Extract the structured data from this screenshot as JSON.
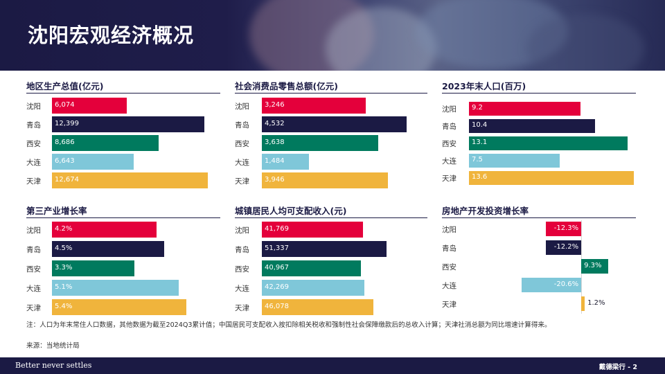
{
  "title": "沈阳宏观经济概况",
  "colors": {
    "沈阳": "#e4003b",
    "青岛": "#1b1a44",
    "西安": "#007a5e",
    "大连": "#7fc7d9",
    "天津": "#f0b43c"
  },
  "chart_data": [
    {
      "type": "bar",
      "title": "地区生产总值(亿元)",
      "categories": [
        "沈阳",
        "青岛",
        "西安",
        "大连",
        "天津"
      ],
      "values": [
        6074,
        12399,
        8686,
        6643,
        12674
      ],
      "value_labels": [
        "6,074",
        "12,399",
        "8,686",
        "6,643",
        "12,674"
      ],
      "xlim": [
        0,
        14000
      ]
    },
    {
      "type": "bar",
      "title": "社会消费品零售总额(亿元)",
      "categories": [
        "沈阳",
        "青岛",
        "西安",
        "大连",
        "天津"
      ],
      "values": [
        3246,
        4532,
        3638,
        1484,
        3946
      ],
      "value_labels": [
        "3,246",
        "4,532",
        "3,638",
        "1,484",
        "3,946"
      ],
      "xlim": [
        0,
        5200
      ]
    },
    {
      "type": "bar",
      "title": "2023年末人口(百万)",
      "categories": [
        "沈阳",
        "青岛",
        "西安",
        "大连",
        "天津"
      ],
      "values": [
        9.2,
        10.4,
        13.1,
        7.5,
        13.6
      ],
      "value_labels": [
        "9.2",
        "10.4",
        "13.1",
        "7.5",
        "13.6"
      ],
      "xlim": [
        0,
        13.6
      ]
    },
    {
      "type": "bar",
      "title": "第三产业增长率",
      "categories": [
        "沈阳",
        "青岛",
        "西安",
        "大连",
        "天津"
      ],
      "values": [
        4.2,
        4.5,
        3.3,
        5.1,
        5.4
      ],
      "value_labels": [
        "4.2%",
        "4.5%",
        "3.3%",
        "5.1%",
        "5.4%"
      ],
      "xlim": [
        0,
        5.4
      ]
    },
    {
      "type": "bar",
      "title": "城镇居民人均可支配收入(元)",
      "categories": [
        "沈阳",
        "青岛",
        "西安",
        "大连",
        "天津"
      ],
      "values": [
        41769,
        51337,
        40967,
        42269,
        46078
      ],
      "value_labels": [
        "41,769",
        "51,337",
        "40,967",
        "42,269",
        "46,078"
      ],
      "xlim": [
        0,
        58000
      ]
    },
    {
      "type": "bar",
      "title": "房地产开发投资增长率",
      "categories": [
        "沈阳",
        "青岛",
        "西安",
        "大连",
        "天津"
      ],
      "values": [
        -12.3,
        -12.2,
        9.3,
        -20.6,
        1.2
      ],
      "value_labels": [
        "-12.3%",
        "-12.2%",
        "9.3%",
        "-20.6%",
        "1.2%"
      ],
      "xlim": [
        -20.6,
        9.3
      ]
    }
  ],
  "note": "注：人口为年末常住人口数据，其他数据为截至2024Q3累计值；中国居民可支配收入按扣除相关税收和强制性社会保障缴款后的总收入计算；天津社消总额为同比增速计算得来。",
  "source": "来源：当地统计局",
  "footer": {
    "tagline": "Better never settles",
    "page": "戴德梁行 - 2"
  }
}
